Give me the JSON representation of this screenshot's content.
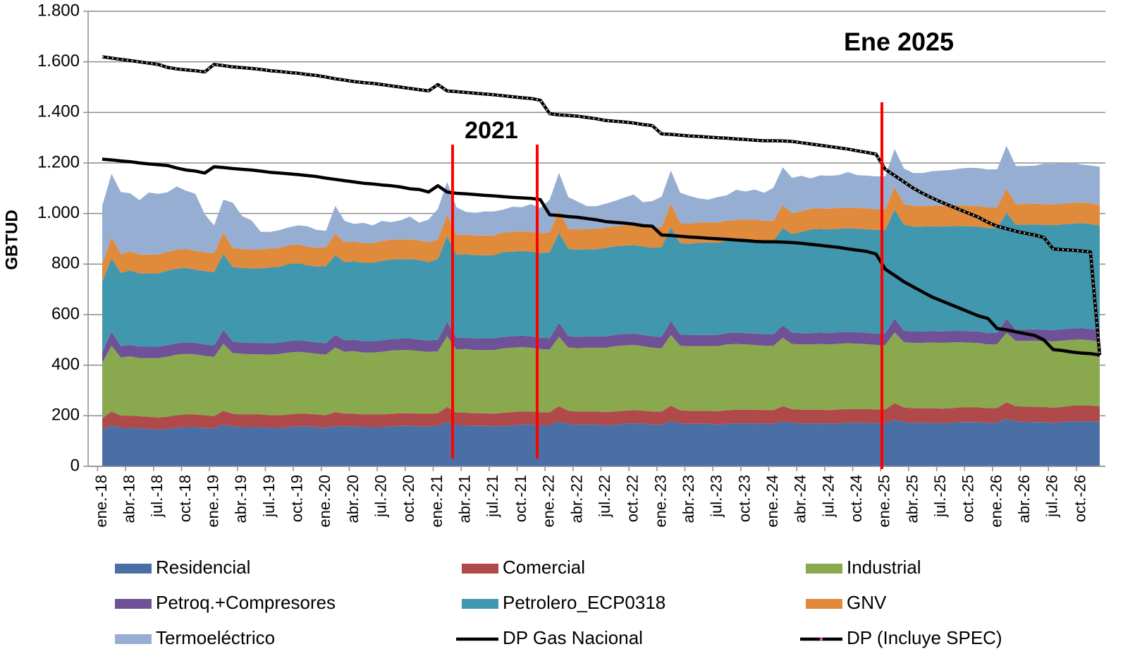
{
  "chart_data": {
    "type": "area",
    "y_label": "GBTUD",
    "annotations": [
      "2021",
      "Ene 2025"
    ],
    "categories": [
      "ene.-18",
      null,
      null,
      "abr.-18",
      null,
      null,
      "jul.-18",
      null,
      null,
      "oct.-18",
      null,
      null,
      "ene.-19",
      null,
      null,
      "abr.-19",
      null,
      null,
      "jul.-19",
      null,
      null,
      "oct.-19",
      null,
      null,
      "ene.-20",
      null,
      null,
      "abr.-20",
      null,
      null,
      "jul.-20",
      null,
      null,
      "oct.-20",
      null,
      null,
      "ene.-21",
      null,
      null,
      "abr.-21",
      null,
      null,
      "jul.-21",
      null,
      null,
      "oct.-21",
      null,
      null,
      "ene.-22",
      null,
      null,
      "abr.-22",
      null,
      null,
      "jul.-22",
      null,
      null,
      "oct.-22",
      null,
      null,
      "ene.-23",
      null,
      null,
      "abr.-23",
      null,
      null,
      "jul.-23",
      null,
      null,
      "oct.-23",
      null,
      null,
      "ene.-24",
      null,
      null,
      "abr.-24",
      null,
      null,
      "jul.-24",
      null,
      null,
      "oct.-24",
      null,
      null,
      "ene.-25",
      null,
      null,
      "abr.-25",
      null,
      null,
      "jul.-25",
      null,
      null,
      "oct.-25",
      null,
      null,
      "ene.-26",
      null,
      null,
      "abr.-26",
      null,
      null,
      "jul.-26",
      null,
      null,
      "oct.-26",
      null,
      null
    ],
    "ylim": [
      0,
      1800
    ],
    "yticks": [
      0,
      200,
      400,
      600,
      800,
      {
        "value": 1000,
        "label": "1.000"
      },
      {
        "value": 1200,
        "label": "1.200"
      },
      {
        "value": 1400,
        "label": "1.400"
      },
      {
        "value": 1600,
        "label": "1.600"
      },
      {
        "value": 1800,
        "label": "1.800"
      }
    ],
    "grid": true,
    "series": [
      {
        "name": "Residencial",
        "type": "area",
        "color": "#4a6fa5",
        "values": [
          145,
          162,
          152,
          152,
          150,
          148,
          145,
          148,
          152,
          155,
          155,
          152,
          150,
          165,
          158,
          155,
          155,
          155,
          152,
          152,
          155,
          158,
          158,
          155,
          152,
          160,
          158,
          158,
          155,
          155,
          155,
          158,
          160,
          160,
          158,
          158,
          160,
          175,
          162,
          162,
          160,
          160,
          158,
          160,
          162,
          165,
          165,
          162,
          162,
          178,
          168,
          165,
          165,
          165,
          162,
          165,
          168,
          170,
          168,
          165,
          165,
          180,
          170,
          168,
          168,
          168,
          165,
          168,
          170,
          170,
          170,
          168,
          168,
          178,
          172,
          170,
          170,
          170,
          168,
          170,
          172,
          172,
          172,
          170,
          170,
          185,
          175,
          172,
          172,
          172,
          170,
          172,
          175,
          175,
          175,
          172,
          173,
          188,
          178,
          176,
          175,
          175,
          172,
          175,
          178,
          178,
          178,
          176
        ]
      },
      {
        "name": "Comercial",
        "type": "area",
        "color": "#b04a4a",
        "values": [
          45,
          55,
          48,
          48,
          48,
          48,
          48,
          48,
          50,
          50,
          50,
          50,
          48,
          55,
          50,
          50,
          50,
          50,
          50,
          50,
          50,
          50,
          50,
          50,
          50,
          55,
          50,
          50,
          50,
          50,
          50,
          50,
          50,
          50,
          50,
          50,
          50,
          60,
          50,
          50,
          50,
          50,
          50,
          52,
          52,
          52,
          52,
          52,
          52,
          60,
          52,
          52,
          52,
          52,
          52,
          52,
          52,
          52,
          52,
          52,
          52,
          60,
          52,
          52,
          52,
          52,
          52,
          54,
          54,
          54,
          54,
          54,
          54,
          60,
          54,
          54,
          54,
          54,
          54,
          55,
          55,
          55,
          55,
          55,
          55,
          65,
          58,
          58,
          58,
          58,
          58,
          58,
          58,
          58,
          58,
          58,
          58,
          65,
          60,
          60,
          60,
          60,
          60,
          60,
          62,
          62,
          62,
          62
        ]
      },
      {
        "name": "Industrial",
        "type": "area",
        "color": "#8aa84e",
        "values": [
          220,
          260,
          230,
          235,
          230,
          232,
          235,
          238,
          240,
          240,
          238,
          235,
          235,
          265,
          240,
          240,
          238,
          238,
          240,
          242,
          245,
          245,
          242,
          240,
          240,
          255,
          245,
          248,
          245,
          245,
          248,
          250,
          250,
          250,
          248,
          245,
          245,
          280,
          250,
          252,
          250,
          250,
          252,
          255,
          255,
          255,
          252,
          250,
          248,
          275,
          250,
          250,
          252,
          252,
          255,
          258,
          258,
          258,
          255,
          252,
          250,
          280,
          255,
          255,
          255,
          255,
          258,
          260,
          260,
          258,
          256,
          255,
          255,
          270,
          258,
          258,
          258,
          260,
          260,
          260,
          260,
          258,
          256,
          255,
          255,
          280,
          258,
          258,
          258,
          260,
          260,
          260,
          258,
          256,
          255,
          252,
          252,
          275,
          258,
          260,
          262,
          260,
          262,
          262,
          260,
          262,
          258,
          255
        ]
      },
      {
        "name": "Petroq.+Compresores",
        "type": "area",
        "color": "#6e5196",
        "values": [
          40,
          55,
          45,
          45,
          45,
          45,
          45,
          45,
          45,
          45,
          45,
          45,
          45,
          55,
          45,
          45,
          45,
          45,
          45,
          45,
          45,
          45,
          45,
          45,
          45,
          50,
          45,
          45,
          45,
          45,
          45,
          45,
          45,
          45,
          45,
          45,
          45,
          55,
          45,
          45,
          45,
          45,
          45,
          45,
          45,
          45,
          45,
          45,
          45,
          55,
          45,
          45,
          45,
          45,
          45,
          45,
          45,
          45,
          45,
          45,
          45,
          55,
          45,
          45,
          45,
          45,
          45,
          45,
          45,
          45,
          45,
          45,
          45,
          50,
          45,
          45,
          45,
          45,
          45,
          45,
          45,
          45,
          45,
          45,
          45,
          55,
          45,
          45,
          45,
          45,
          45,
          45,
          45,
          45,
          45,
          45,
          45,
          55,
          45,
          45,
          45,
          45,
          45,
          45,
          45,
          45,
          45,
          45
        ]
      },
      {
        "name": "Petrolero_ECP0318",
        "type": "area",
        "color": "#4197ad",
        "values": [
          280,
          290,
          290,
          295,
          290,
          290,
          290,
          295,
          295,
          295,
          290,
          290,
          290,
          300,
          295,
          295,
          295,
          295,
          300,
          300,
          305,
          305,
          300,
          300,
          305,
          315,
          310,
          310,
          310,
          310,
          315,
          315,
          315,
          315,
          315,
          310,
          320,
          340,
          330,
          330,
          330,
          330,
          330,
          335,
          335,
          335,
          335,
          335,
          340,
          355,
          345,
          345,
          345,
          345,
          350,
          350,
          350,
          350,
          350,
          350,
          355,
          370,
          360,
          360,
          365,
          365,
          365,
          365,
          365,
          370,
          370,
          370,
          370,
          385,
          390,
          400,
          410,
          410,
          410,
          410,
          410,
          410,
          410,
          410,
          410,
          430,
          420,
          415,
          415,
          415,
          415,
          415,
          415,
          415,
          415,
          415,
          415,
          420,
          415,
          415,
          415,
          415,
          415,
          415,
          415,
          415,
          415,
          415
        ]
      },
      {
        "name": "GNV",
        "type": "area",
        "color": "#e08a3c",
        "values": [
          70,
          85,
          75,
          75,
          75,
          75,
          75,
          75,
          75,
          75,
          75,
          75,
          75,
          85,
          75,
          75,
          75,
          75,
          75,
          75,
          75,
          75,
          75,
          75,
          75,
          85,
          78,
          78,
          78,
          78,
          78,
          78,
          78,
          78,
          78,
          78,
          78,
          85,
          78,
          78,
          78,
          78,
          78,
          78,
          78,
          78,
          78,
          78,
          78,
          88,
          80,
          80,
          80,
          80,
          80,
          80,
          80,
          80,
          80,
          80,
          80,
          95,
          80,
          80,
          80,
          80,
          80,
          80,
          80,
          80,
          80,
          80,
          80,
          90,
          82,
          82,
          82,
          82,
          82,
          82,
          82,
          82,
          82,
          82,
          82,
          90,
          82,
          82,
          82,
          82,
          82,
          82,
          82,
          82,
          82,
          82,
          82,
          95,
          82,
          82,
          82,
          82,
          82,
          82,
          82,
          82,
          82,
          82
        ]
      },
      {
        "name": "Termoeléctrico",
        "type": "area",
        "color": "#97aed3",
        "values": [
          230,
          250,
          245,
          230,
          215,
          245,
          240,
          235,
          250,
          230,
          225,
          150,
          110,
          130,
          180,
          130,
          115,
          70,
          65,
          70,
          70,
          75,
          80,
          70,
          65,
          110,
          85,
          70,
          80,
          70,
          80,
          70,
          75,
          90,
          70,
          90,
          120,
          130,
          110,
          90,
          90,
          95,
          95,
          90,
          100,
          95,
          110,
          100,
          130,
          150,
          125,
          110,
          90,
          90,
          95,
          100,
          110,
          120,
          95,
          105,
          120,
          130,
          120,
          110,
          95,
          90,
          100,
          100,
          120,
          110,
          120,
          110,
          130,
          150,
          140,
          140,
          120,
          130,
          130,
          130,
          140,
          130,
          130,
          130,
          130,
          150,
          140,
          130,
          130,
          135,
          140,
          140,
          145,
          150,
          150,
          150,
          150,
          170,
          150,
          150,
          150,
          160,
          160,
          160,
          160,
          150,
          150,
          150
        ]
      },
      {
        "name": "DP Gas Nacional",
        "type": "line",
        "color": "#000000",
        "values": [
          1215,
          1212,
          1208,
          1205,
          1200,
          1196,
          1193,
          1190,
          1180,
          1172,
          1168,
          1160,
          1185,
          1182,
          1178,
          1175,
          1172,
          1168,
          1163,
          1160,
          1157,
          1154,
          1150,
          1146,
          1140,
          1135,
          1130,
          1125,
          1120,
          1117,
          1113,
          1110,
          1105,
          1098,
          1095,
          1085,
          1110,
          1085,
          1080,
          1078,
          1075,
          1072,
          1070,
          1067,
          1064,
          1062,
          1060,
          1055,
          995,
          992,
          988,
          985,
          980,
          975,
          968,
          965,
          962,
          958,
          952,
          950,
          915,
          913,
          910,
          907,
          905,
          902,
          900,
          898,
          895,
          893,
          890,
          888,
          888,
          887,
          885,
          882,
          878,
          874,
          870,
          866,
          860,
          855,
          850,
          840,
          780,
          755,
          730,
          710,
          690,
          670,
          655,
          640,
          625,
          610,
          595,
          585,
          545,
          540,
          532,
          525,
          518,
          500,
          462,
          458,
          452,
          448,
          446,
          440
        ]
      },
      {
        "name": "DP (Incluye SPEC)",
        "type": "line",
        "color": "#000000",
        "dotted": true,
        "values": [
          1620,
          1615,
          1610,
          1605,
          1600,
          1595,
          1590,
          1578,
          1572,
          1568,
          1565,
          1560,
          1590,
          1585,
          1580,
          1577,
          1574,
          1570,
          1565,
          1562,
          1558,
          1555,
          1550,
          1546,
          1540,
          1533,
          1528,
          1522,
          1518,
          1515,
          1510,
          1505,
          1500,
          1495,
          1490,
          1485,
          1510,
          1485,
          1482,
          1479,
          1476,
          1473,
          1470,
          1466,
          1462,
          1458,
          1455,
          1448,
          1395,
          1390,
          1388,
          1385,
          1380,
          1375,
          1368,
          1365,
          1362,
          1358,
          1352,
          1348,
          1315,
          1313,
          1310,
          1307,
          1305,
          1302,
          1300,
          1298,
          1295,
          1293,
          1290,
          1288,
          1288,
          1287,
          1285,
          1280,
          1275,
          1270,
          1265,
          1260,
          1255,
          1248,
          1242,
          1235,
          1175,
          1150,
          1125,
          1100,
          1080,
          1062,
          1045,
          1030,
          1015,
          1000,
          985,
          965,
          950,
          940,
          930,
          922,
          915,
          905,
          860,
          857,
          855,
          852,
          848,
          440
        ]
      }
    ]
  }
}
